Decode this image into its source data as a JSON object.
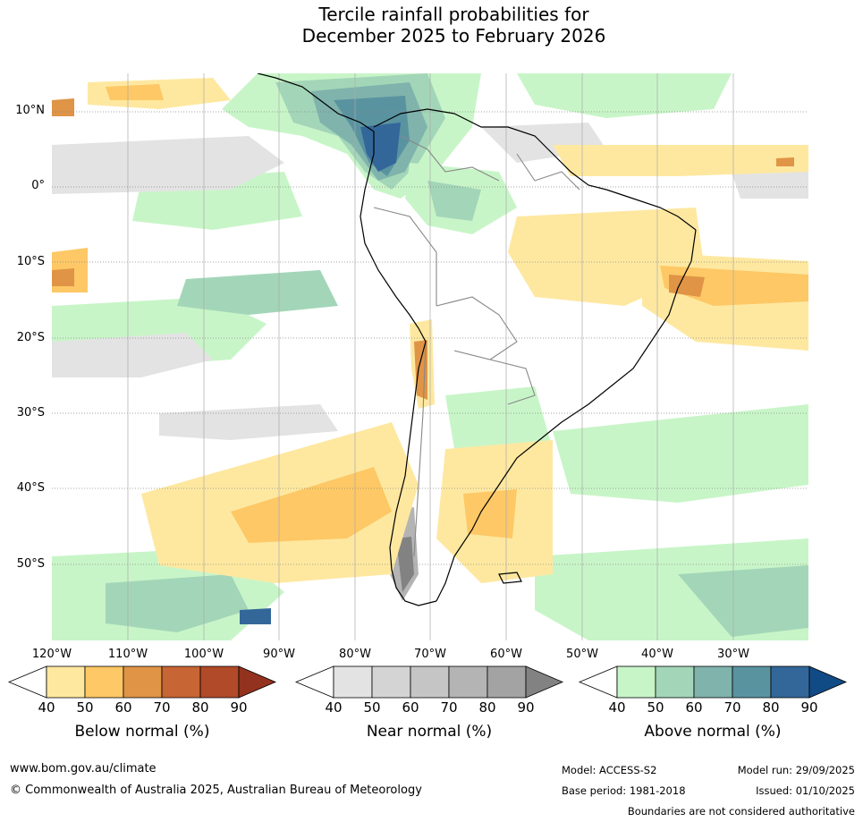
{
  "title": {
    "line1": "Tercile rainfall probabilities for",
    "line2": "December 2025 to February 2026"
  },
  "map": {
    "region": "South America",
    "latitude_labels": [
      "10°N",
      "0°",
      "10°S",
      "20°S",
      "30°S",
      "40°S",
      "50°S"
    ],
    "longitude_labels": [
      "120°W",
      "110°W",
      "100°W",
      "90°W",
      "80°W",
      "70°W",
      "60°W",
      "50°W",
      "40°W",
      "30°W"
    ]
  },
  "colorbars": [
    {
      "name": "below",
      "label": "Below normal (%)",
      "ticks": [
        "40",
        "50",
        "60",
        "70",
        "80",
        "90"
      ],
      "colors": [
        "#ffffff",
        "#fee8a0",
        "#fdc865",
        "#df9446",
        "#c86535",
        "#b04a28",
        "#93321e"
      ]
    },
    {
      "name": "near",
      "label": "Near normal (%)",
      "ticks": [
        "40",
        "50",
        "60",
        "70",
        "80",
        "90"
      ],
      "colors": [
        "#ffffff",
        "#e3e3e3",
        "#d4d4d4",
        "#c5c5c5",
        "#b4b4b4",
        "#a3a3a3",
        "#828282"
      ]
    },
    {
      "name": "above",
      "label": "Above normal (%)",
      "ticks": [
        "40",
        "50",
        "60",
        "70",
        "80",
        "90"
      ],
      "colors": [
        "#ffffff",
        "#c8f5c8",
        "#a3d6b8",
        "#7fb3ac",
        "#5a93a0",
        "#336799",
        "#114b86"
      ]
    }
  ],
  "footer": {
    "website": "www.bom.gov.au/climate",
    "copyright": "© Commonwealth of Australia 2025, Australian Bureau of Meteorology",
    "model": "Model: ACCESS-S2",
    "model_run": "Model run: 29/09/2025",
    "base_period": "Base period: 1981-2018",
    "issued": "Issued: 01/10/2025",
    "disclaimer": "Boundaries are not considered authoritative"
  }
}
